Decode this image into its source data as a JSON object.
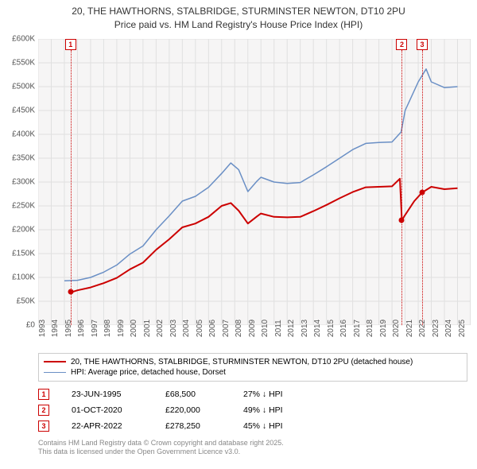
{
  "title_line1": "20, THE HAWTHORNS, STALBRIDGE, STURMINSTER NEWTON, DT10 2PU",
  "title_line2": "Price paid vs. HM Land Registry's House Price Index (HPI)",
  "chart": {
    "type": "line",
    "background_color": "#f6f5f5",
    "grid_color": "#e0e0e0",
    "plot_border_color": "#cccccc",
    "yaxis": {
      "min": 0,
      "max": 600000,
      "ticks": [
        0,
        50000,
        100000,
        150000,
        200000,
        250000,
        300000,
        350000,
        400000,
        450000,
        500000,
        550000,
        600000
      ],
      "labels": [
        "£0",
        "£50K",
        "£100K",
        "£150K",
        "£200K",
        "£250K",
        "£300K",
        "£350K",
        "£400K",
        "£450K",
        "£500K",
        "£550K",
        "£600K"
      ],
      "label_fontsize": 10,
      "label_color": "#555555"
    },
    "xaxis": {
      "min": 1993,
      "max": 2026,
      "ticks": [
        1993,
        1994,
        1995,
        1996,
        1997,
        1998,
        1999,
        2000,
        2001,
        2002,
        2003,
        2004,
        2005,
        2006,
        2007,
        2008,
        2009,
        2010,
        2011,
        2012,
        2013,
        2014,
        2015,
        2016,
        2017,
        2018,
        2019,
        2020,
        2021,
        2022,
        2023,
        2024,
        2025
      ],
      "label_fontsize": 10,
      "label_color": "#555555"
    },
    "series": [
      {
        "id": "price_paid",
        "label": "20, THE HAWTHORNS, STALBRIDGE, STURMINSTER NEWTON, DT10 2PU (detached house)",
        "color": "#cc0000",
        "line_width": 2,
        "points": [
          [
            1995.47,
            68500
          ],
          [
            1996,
            73000
          ],
          [
            1997,
            79000
          ],
          [
            1998,
            88000
          ],
          [
            1999,
            99000
          ],
          [
            2000,
            117000
          ],
          [
            2001,
            131000
          ],
          [
            2002,
            158000
          ],
          [
            2003,
            180000
          ],
          [
            2004,
            205000
          ],
          [
            2005,
            213000
          ],
          [
            2006,
            227000
          ],
          [
            2007,
            250000
          ],
          [
            2007.7,
            256000
          ],
          [
            2008.3,
            240000
          ],
          [
            2009,
            213000
          ],
          [
            2009.7,
            228000
          ],
          [
            2010,
            234000
          ],
          [
            2011,
            227000
          ],
          [
            2012,
            226000
          ],
          [
            2013,
            227000
          ],
          [
            2014,
            239000
          ],
          [
            2015,
            252000
          ],
          [
            2016,
            266000
          ],
          [
            2017,
            279000
          ],
          [
            2018,
            289000
          ],
          [
            2019,
            290000
          ],
          [
            2020,
            291000
          ],
          [
            2020.6,
            307000
          ],
          [
            2020.75,
            220000
          ],
          [
            2021,
            231000
          ],
          [
            2021.7,
            260000
          ],
          [
            2022.3,
            278250
          ],
          [
            2023,
            290000
          ],
          [
            2024,
            285000
          ],
          [
            2025,
            287000
          ]
        ]
      },
      {
        "id": "hpi",
        "label": "HPI: Average price, detached house, Dorset",
        "color": "#6a8fc5",
        "line_width": 1.5,
        "points": [
          [
            1995,
            93000
          ],
          [
            1996,
            94000
          ],
          [
            1997,
            100000
          ],
          [
            1998,
            111000
          ],
          [
            1999,
            126000
          ],
          [
            2000,
            149000
          ],
          [
            2001,
            166000
          ],
          [
            2002,
            200000
          ],
          [
            2003,
            229000
          ],
          [
            2004,
            260000
          ],
          [
            2005,
            270000
          ],
          [
            2006,
            289000
          ],
          [
            2007,
            318000
          ],
          [
            2007.7,
            340000
          ],
          [
            2008.3,
            326000
          ],
          [
            2009,
            280000
          ],
          [
            2009.7,
            302000
          ],
          [
            2010,
            310000
          ],
          [
            2011,
            300000
          ],
          [
            2012,
            297000
          ],
          [
            2013,
            299000
          ],
          [
            2014,
            315000
          ],
          [
            2015,
            332000
          ],
          [
            2016,
            350000
          ],
          [
            2017,
            368000
          ],
          [
            2018,
            381000
          ],
          [
            2019,
            383000
          ],
          [
            2020,
            384000
          ],
          [
            2020.7,
            405000
          ],
          [
            2021,
            450000
          ],
          [
            2022,
            510000
          ],
          [
            2022.6,
            537000
          ],
          [
            2023,
            510000
          ],
          [
            2024,
            498000
          ],
          [
            2025,
            500000
          ]
        ]
      }
    ],
    "markers": [
      {
        "n": "1",
        "x": 1995.47,
        "y": 68500,
        "color": "#cc0000"
      },
      {
        "n": "2",
        "x": 2020.75,
        "y": 220000,
        "color": "#cc0000"
      },
      {
        "n": "3",
        "x": 2022.3,
        "y": 278250,
        "color": "#cc0000"
      }
    ]
  },
  "legend": [
    {
      "color": "#cc0000",
      "width": 2,
      "text": "20, THE HAWTHORNS, STALBRIDGE, STURMINSTER NEWTON, DT10 2PU (detached house)"
    },
    {
      "color": "#6a8fc5",
      "width": 1.5,
      "text": "HPI: Average price, detached house, Dorset"
    }
  ],
  "transactions": [
    {
      "n": "1",
      "color": "#cc0000",
      "date": "23-JUN-1995",
      "price": "£68,500",
      "pct": "27% ↓ HPI"
    },
    {
      "n": "2",
      "color": "#cc0000",
      "date": "01-OCT-2020",
      "price": "£220,000",
      "pct": "49% ↓ HPI"
    },
    {
      "n": "3",
      "color": "#cc0000",
      "date": "22-APR-2022",
      "price": "£278,250",
      "pct": "45% ↓ HPI"
    }
  ],
  "footnote_line1": "Contains HM Land Registry data © Crown copyright and database right 2025.",
  "footnote_line2": "This data is licensed under the Open Government Licence v3.0."
}
